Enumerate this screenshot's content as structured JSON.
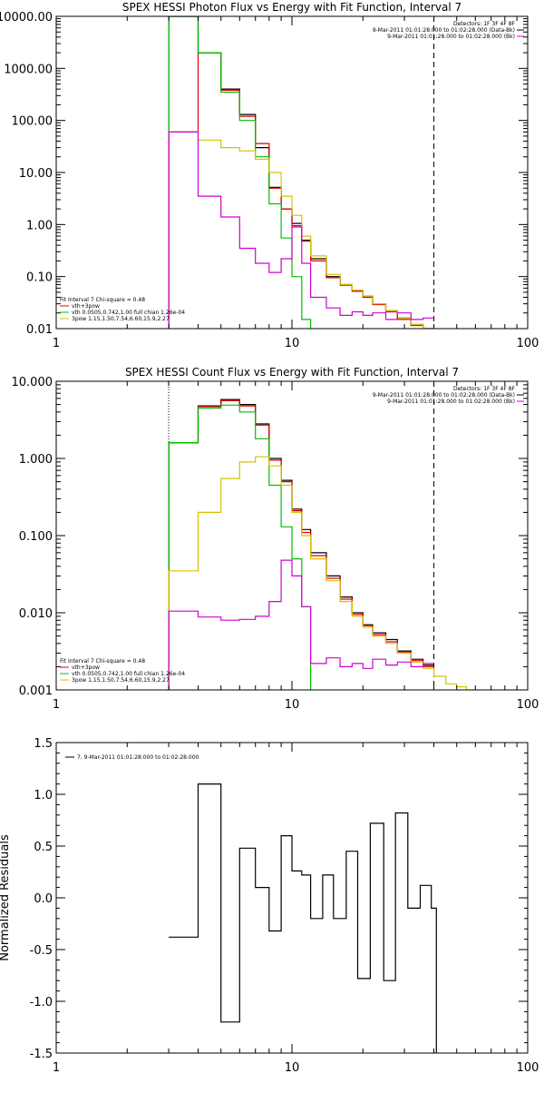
{
  "chart_data": [
    {
      "type": "line",
      "title": "SPEX HESSI Photon Flux vs Energy with Fit Function, Interval 7",
      "xlabel": "",
      "ylabel": "",
      "xscale": "log",
      "yscale": "log",
      "xlim": [
        1,
        100
      ],
      "ylim": [
        0.01,
        10000
      ],
      "x_ticks": [
        "1",
        "10",
        "100"
      ],
      "y_ticks": [
        "10000.00",
        "1000.00",
        "100.00",
        "10.00",
        "1.00",
        "0.10",
        "0.01"
      ],
      "y_tick_values": [
        10000,
        1000,
        100,
        10,
        1,
        0.1,
        0.01
      ],
      "info_lines": [
        {
          "text": "Detectors: 1F 3F 4F 8F",
          "color": "#000000"
        },
        {
          "text": "9-Mar-2011 01:01:28.000 to 01:02:28.000 (Data-Bk)",
          "color": "#000000"
        },
        {
          "text": "9-Mar-2011 01:01:28.000 to 01:02:28.000 (Bk)",
          "color": "#000000"
        }
      ],
      "legend": {
        "header": "Fit Interval  7   Chi-square = 0.48",
        "placement": "bottom-left",
        "entries": [
          {
            "label": "vth+3pow",
            "color": "#e00000"
          },
          {
            "label": "vth 0.0505,0.742,1.00  full chian 1.26e-04",
            "color": "#00c000"
          },
          {
            "label": "3pow 1.15,1.50,7.54,6.60,15.9,2.27",
            "color": "#d8c000"
          }
        ]
      },
      "vlines": [
        {
          "x": 3,
          "style": "dotted",
          "color": "#000000"
        },
        {
          "x": 40,
          "style": "dashed",
          "color": "#000000"
        }
      ],
      "series": [
        {
          "label": "data-bk",
          "color": "#000000",
          "type": "step",
          "edges": [
            3,
            4,
            5,
            6,
            7,
            8,
            9,
            10,
            11,
            12,
            14,
            16,
            18,
            20,
            22,
            25,
            28,
            32,
            36,
            40
          ],
          "values": [
            10000,
            2000,
            400,
            130,
            30,
            5.2,
            2.0,
            1.05,
            0.5,
            0.22,
            0.1,
            0.07,
            0.055,
            0.042,
            0.03,
            0.022,
            0.016,
            0.012,
            0.01
          ]
        },
        {
          "label": "vth+3pow",
          "color": "#e00000",
          "type": "step",
          "edges": [
            3,
            4,
            5,
            6,
            7,
            8,
            9,
            10,
            11,
            12,
            14,
            16,
            18,
            20,
            22,
            25,
            28,
            32,
            36,
            40
          ],
          "values": [
            60,
            2000,
            380,
            120,
            36,
            5.0,
            2.0,
            0.95,
            0.48,
            0.2,
            0.095,
            0.068,
            0.052,
            0.04,
            0.029,
            0.021,
            0.015,
            0.0115,
            0.0095
          ]
        },
        {
          "label": "vth",
          "color": "#00c000",
          "type": "step",
          "edges": [
            3,
            4,
            5,
            6,
            7,
            8,
            9,
            10,
            11,
            12,
            13
          ],
          "values": [
            10000,
            2000,
            350,
            100,
            20,
            2.5,
            0.55,
            0.1,
            0.015,
            0.002
          ]
        },
        {
          "label": "3pow",
          "color": "#d8c000",
          "type": "step",
          "edges": [
            3,
            4,
            5,
            6,
            7,
            8,
            9,
            10,
            11,
            12,
            14,
            16,
            18,
            20,
            22,
            25,
            28,
            32,
            36,
            40,
            45
          ],
          "values": [
            60,
            42,
            30,
            26,
            18,
            10,
            3.5,
            1.5,
            0.6,
            0.25,
            0.11,
            0.07,
            0.055,
            0.042,
            0.03,
            0.022,
            0.016,
            0.012,
            0.01,
            0.0085
          ]
        },
        {
          "label": "bk",
          "color": "#d000d0",
          "type": "step",
          "edges": [
            3,
            4,
            5,
            6,
            7,
            8,
            9,
            10,
            11,
            12,
            14,
            16,
            18,
            20,
            22,
            25,
            28,
            32,
            36,
            40
          ],
          "values": [
            60,
            3.5,
            1.4,
            0.35,
            0.18,
            0.12,
            0.22,
            0.9,
            0.18,
            0.04,
            0.025,
            0.018,
            0.021,
            0.018,
            0.02,
            0.015,
            0.02,
            0.015,
            0.016
          ]
        }
      ]
    },
    {
      "type": "line",
      "title": "SPEX HESSI Count Flux vs Energy with Fit Function, Interval 7",
      "xlabel": "",
      "ylabel": "",
      "xscale": "log",
      "yscale": "log",
      "xlim": [
        1,
        100
      ],
      "ylim": [
        0.001,
        10
      ],
      "x_ticks": [
        "1",
        "10",
        "100"
      ],
      "y_ticks": [
        "10.000",
        "1.000",
        "0.100",
        "0.010",
        "0.001"
      ],
      "y_tick_values": [
        10,
        1,
        0.1,
        0.01,
        0.001
      ],
      "info_lines": [
        {
          "text": "Detectors: 1F 3F 4F 8F",
          "color": "#000000"
        },
        {
          "text": "9-Mar-2011 01:01:28.000 to 01:02:28.000 (Data-Bk)",
          "color": "#000000"
        },
        {
          "text": "9-Mar-2011 01:01:28.000 to 01:02:28.000 (Bk)",
          "color": "#000000"
        }
      ],
      "legend": {
        "header": "Fit Interval  7   Chi-square = 0.48",
        "placement": "bottom-left",
        "entries": [
          {
            "label": "vth+3pow",
            "color": "#e00000"
          },
          {
            "label": "vth 0.0505,0.742,1.00  full chian 1.26e-04",
            "color": "#00c000"
          },
          {
            "label": "3pow 1.15,1.50,7.54,6.60,15.9,2.27",
            "color": "#d8c000"
          }
        ]
      },
      "vlines": [
        {
          "x": 3,
          "style": "dotted",
          "color": "#000000"
        },
        {
          "x": 40,
          "style": "dashed",
          "color": "#000000"
        }
      ],
      "series": [
        {
          "label": "data-bk",
          "color": "#000000",
          "type": "step",
          "edges": [
            3,
            4,
            5,
            6,
            7,
            8,
            9,
            10,
            11,
            12,
            14,
            16,
            18,
            20,
            22,
            25,
            28,
            32,
            36,
            40
          ],
          "values": [
            1.6,
            4.8,
            5.8,
            5.0,
            2.8,
            1.0,
            0.52,
            0.22,
            0.12,
            0.06,
            0.03,
            0.016,
            0.01,
            0.007,
            0.0055,
            0.0045,
            0.0032,
            0.0025,
            0.0021
          ]
        },
        {
          "label": "vth+3pow",
          "color": "#e00000",
          "type": "step",
          "edges": [
            3,
            4,
            5,
            6,
            7,
            8,
            9,
            10,
            11,
            12,
            14,
            16,
            18,
            20,
            22,
            25,
            28,
            32,
            36,
            40
          ],
          "values": [
            1.6,
            4.7,
            5.6,
            4.8,
            2.7,
            0.95,
            0.5,
            0.21,
            0.11,
            0.055,
            0.028,
            0.015,
            0.0095,
            0.0068,
            0.0052,
            0.0042,
            0.0031,
            0.0024,
            0.002
          ]
        },
        {
          "label": "vth",
          "color": "#00c000",
          "type": "step",
          "edges": [
            3,
            4,
            5,
            6,
            7,
            8,
            9,
            10,
            11,
            12,
            13
          ],
          "values": [
            1.6,
            4.5,
            4.9,
            4.0,
            1.8,
            0.45,
            0.13,
            0.05,
            0.012,
            0.0009
          ]
        },
        {
          "label": "3pow",
          "color": "#d8c000",
          "type": "step",
          "edges": [
            3,
            4,
            5,
            6,
            7,
            8,
            9,
            10,
            11,
            12,
            14,
            16,
            18,
            20,
            22,
            25,
            28,
            32,
            36,
            40,
            45,
            50,
            55,
            60
          ],
          "values": [
            0.035,
            0.2,
            0.55,
            0.9,
            1.05,
            0.8,
            0.45,
            0.2,
            0.1,
            0.05,
            0.026,
            0.014,
            0.009,
            0.0065,
            0.005,
            0.004,
            0.003,
            0.0023,
            0.0019,
            0.0015,
            0.0012,
            0.0011,
            0.001
          ]
        },
        {
          "label": "bk",
          "color": "#d000d0",
          "type": "step",
          "edges": [
            3,
            4,
            5,
            6,
            7,
            8,
            9,
            10,
            11,
            12,
            14,
            16,
            18,
            20,
            22,
            25,
            28,
            32,
            36,
            40
          ],
          "values": [
            0.0105,
            0.0088,
            0.008,
            0.0082,
            0.009,
            0.014,
            0.048,
            0.03,
            0.012,
            0.0022,
            0.0026,
            0.002,
            0.0022,
            0.0019,
            0.0025,
            0.0021,
            0.0023,
            0.002,
            0.0022
          ]
        }
      ]
    },
    {
      "type": "line",
      "title": "",
      "xlabel": "",
      "ylabel": "Normalized Residuals",
      "xscale": "log",
      "yscale": "linear",
      "xlim": [
        1,
        100
      ],
      "ylim": [
        -1.5,
        1.5
      ],
      "x_ticks": [
        "1",
        "10",
        "100"
      ],
      "y_ticks": [
        "1.5",
        "1.0",
        "0.5",
        "0.0",
        "-0.5",
        "-1.0",
        "-1.5"
      ],
      "y_tick_values": [
        1.5,
        1.0,
        0.5,
        0.0,
        -0.5,
        -1.0,
        -1.5
      ],
      "legend": {
        "placement": "top-left",
        "entries": [
          {
            "label": "7.  9-Mar-2011 01:01:28.000 to 01:02:28.000",
            "color": "#000000"
          }
        ]
      },
      "series": [
        {
          "label": "residuals",
          "color": "#000000",
          "type": "step",
          "edges": [
            3,
            3.5,
            4,
            4.5,
            5,
            5.5,
            6,
            6.5,
            7,
            7.5,
            8,
            8.5,
            9,
            9.5,
            10,
            10.5,
            11,
            11.5,
            12,
            12.7,
            13.5,
            14.2,
            15,
            16,
            17,
            18,
            19,
            20,
            21.5,
            23,
            24.5,
            26,
            27.5,
            29,
            31,
            33,
            35,
            37,
            39,
            41
          ],
          "values": [
            -0.38,
            -0.38,
            1.1,
            1.1,
            -1.2,
            -1.2,
            0.48,
            0.48,
            0.1,
            0.1,
            -0.32,
            -0.32,
            0.6,
            0.6,
            0.26,
            0.26,
            0.22,
            0.22,
            -0.2,
            -0.2,
            0.22,
            0.22,
            -0.2,
            -0.2,
            0.45,
            0.45,
            -0.78,
            -0.78,
            0.72,
            0.72,
            -0.8,
            -0.8,
            0.82,
            0.82,
            -0.1,
            -0.1,
            0.12,
            0.12,
            -0.1
          ]
        }
      ]
    }
  ]
}
